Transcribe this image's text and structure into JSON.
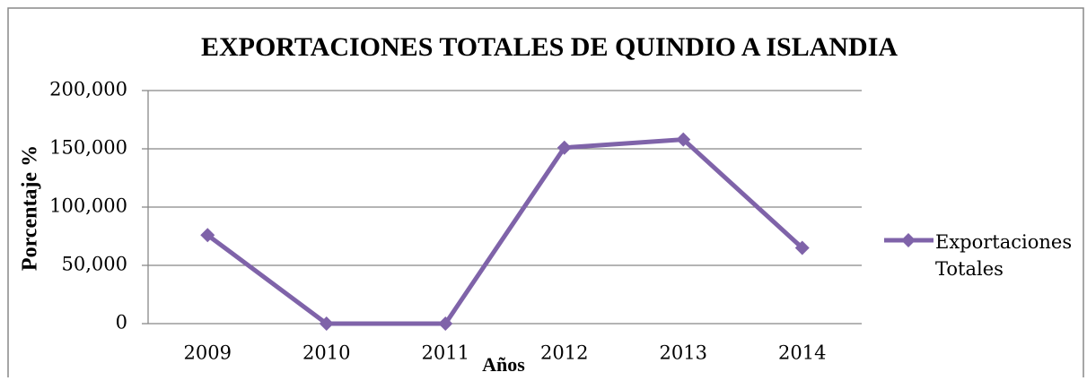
{
  "chart_data": {
    "type": "line",
    "title": "EXPORTACIONES TOTALES DE QUINDIO A ISLANDIA",
    "x_label": "Años",
    "y_label": "Porcentaje %",
    "categories": [
      "2009",
      "2010",
      "2011",
      "2012",
      "2013",
      "2014"
    ],
    "series": [
      {
        "name": "Exportaciones Totales",
        "color": "#7f63a9",
        "values": [
          76000,
          0,
          0,
          151000,
          158000,
          65000
        ]
      }
    ],
    "ylim": [
      0,
      200000
    ],
    "yticks": [
      0,
      {
        "value": 50000,
        "label": "50,000"
      },
      {
        "value": 100000,
        "label": "100,000"
      },
      {
        "value": 150000,
        "label": "150,000"
      },
      {
        "value": 200000,
        "label": "200,000"
      }
    ],
    "grid": true,
    "legend": "right"
  }
}
